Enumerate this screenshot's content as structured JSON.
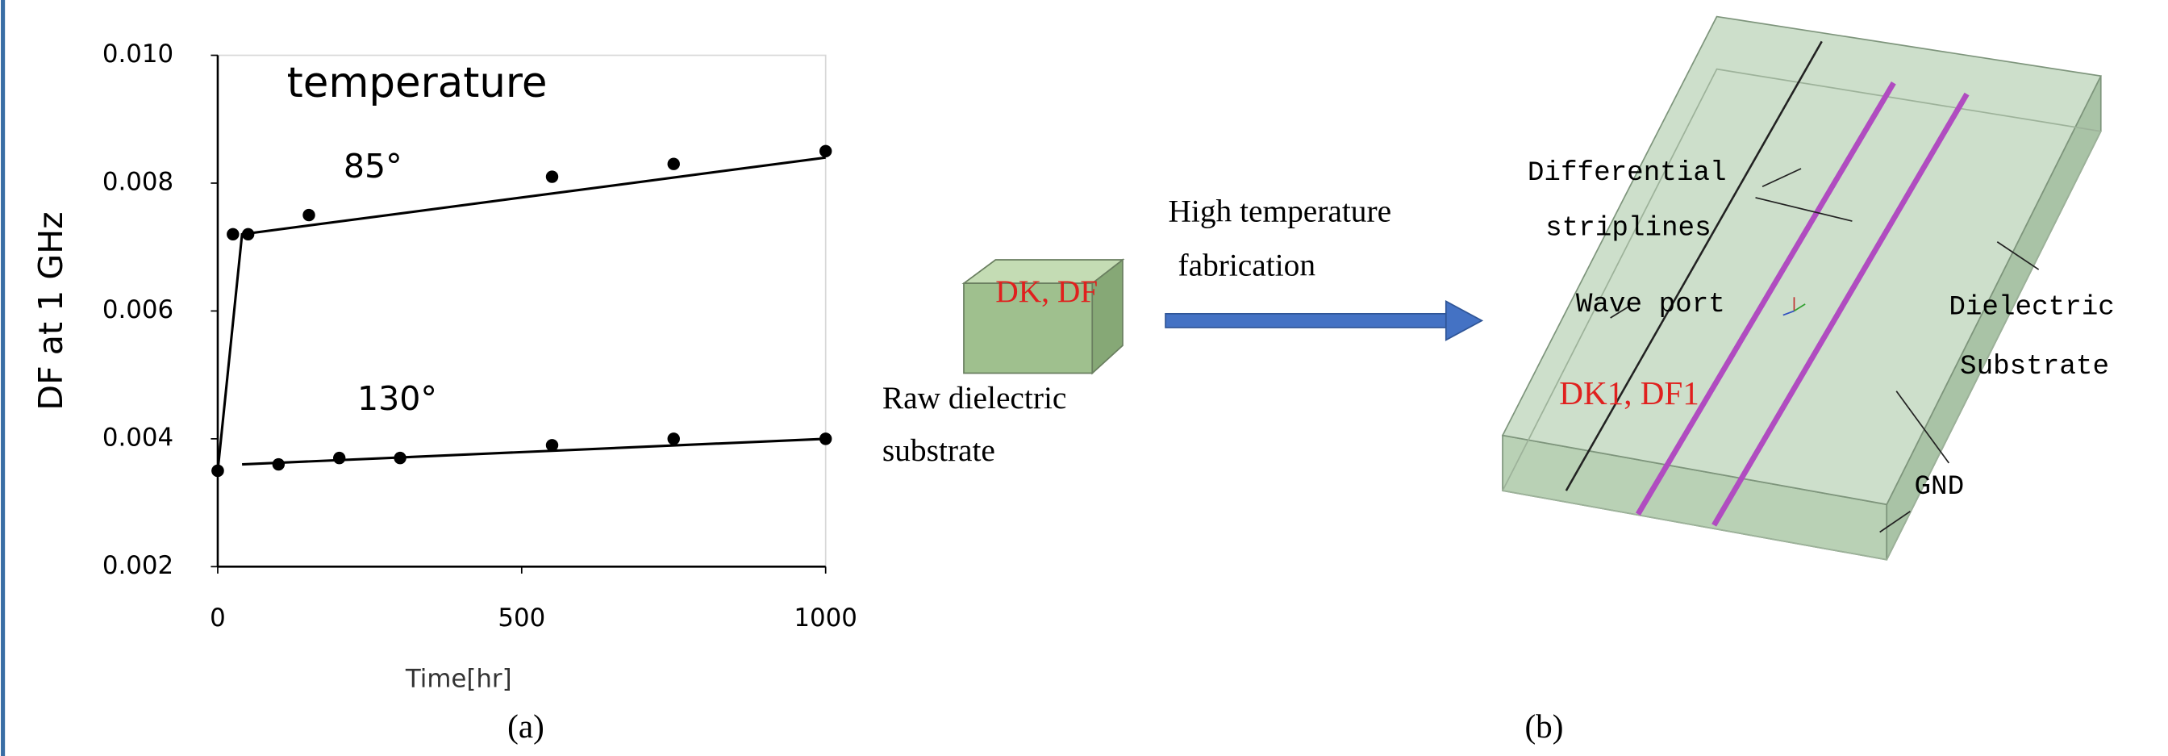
{
  "chart_data": {
    "type": "scatter",
    "annotation": "temperature",
    "x_label": "Time[hr]",
    "y_label": "DF at 1 GHz",
    "caption": "(a)",
    "xlim": [
      0,
      1000
    ],
    "xticks": [
      0,
      500,
      1000
    ],
    "ylim": [
      0.002,
      0.01
    ],
    "yticks": [
      0.002,
      0.004,
      0.006,
      0.008,
      {
        "value": 0.01,
        "label": "0.010"
      }
    ],
    "series": [
      {
        "name": "85°",
        "color": "#000000",
        "x": [
          0,
          25,
          50,
          150,
          550,
          750,
          1000
        ],
        "values": [
          0.0035,
          0.0072,
          0.0072,
          0.0075,
          0.0081,
          0.0083,
          0.0085
        ],
        "fit_x": [
          0,
          40,
          1000
        ],
        "fit_values": [
          0.0035,
          0.0072,
          0.0084
        ]
      },
      {
        "name": "130°",
        "color": "#000000",
        "x": [
          0,
          100,
          200,
          300,
          550,
          750,
          1000
        ],
        "values": [
          0.0035,
          0.0036,
          0.0037,
          0.0037,
          0.0039,
          0.004,
          0.004
        ],
        "fit_x": [
          40,
          1000
        ],
        "fit_values": [
          0.0036,
          0.004
        ]
      }
    ]
  },
  "diagram": {
    "raw_block_label": "DK, DF",
    "raw_caption": [
      "Raw dielectric",
      "substrate"
    ],
    "arrow_label": [
      "High temperature",
      "fabrication"
    ],
    "striplines_label": [
      "Differential",
      "striplines"
    ],
    "wave_port_label": "Wave port",
    "substrate_label": [
      "Dielectric",
      "Substrate"
    ],
    "fabricated_label": "DK1, DF1",
    "gnd_label": "GND",
    "caption": "(b)"
  }
}
